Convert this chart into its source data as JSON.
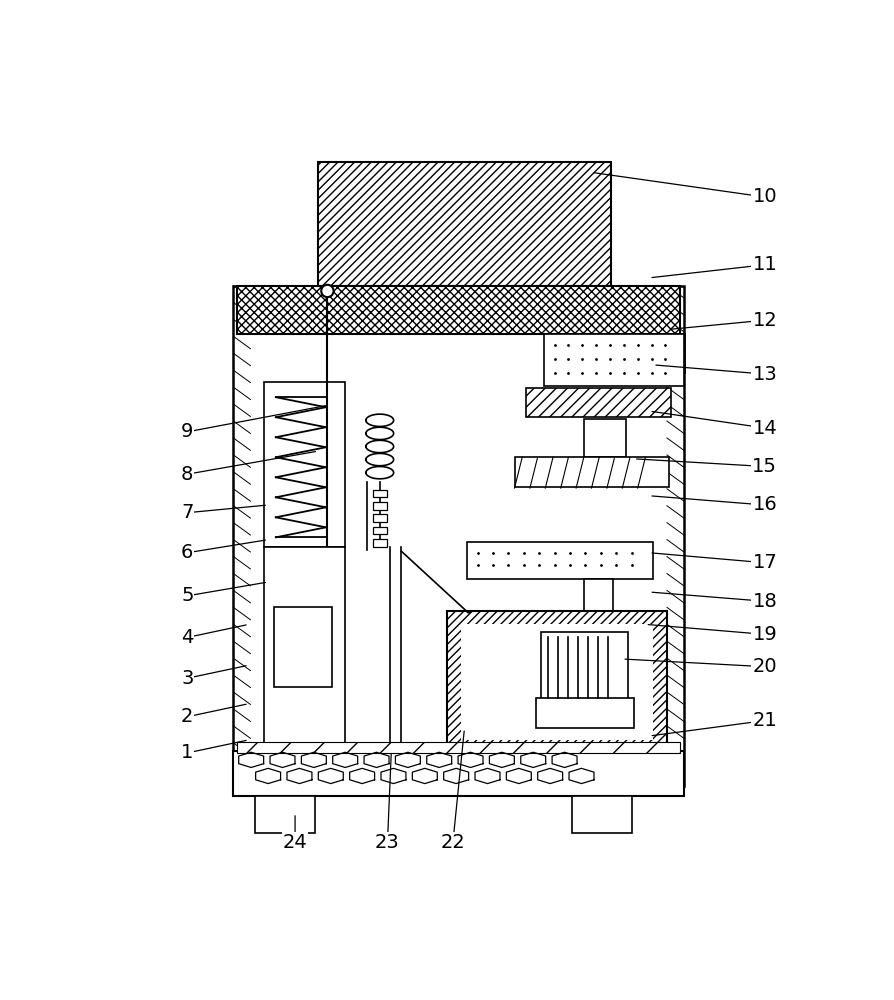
{
  "bg_color": "#ffffff",
  "line_color": "#000000",
  "figsize": [
    8.95,
    10.0
  ],
  "dpi": 100,
  "labels": [
    [
      "1",
      95,
      822,
      175,
      805
    ],
    [
      "2",
      95,
      775,
      175,
      758
    ],
    [
      "3",
      95,
      725,
      175,
      708
    ],
    [
      "4",
      95,
      672,
      175,
      655
    ],
    [
      "5",
      95,
      618,
      200,
      600
    ],
    [
      "6",
      95,
      562,
      200,
      545
    ],
    [
      "7",
      95,
      510,
      200,
      500
    ],
    [
      "8",
      95,
      460,
      265,
      430
    ],
    [
      "9",
      95,
      405,
      280,
      370
    ],
    [
      "10",
      845,
      100,
      620,
      68
    ],
    [
      "11",
      845,
      188,
      695,
      205
    ],
    [
      "12",
      845,
      260,
      720,
      272
    ],
    [
      "13",
      845,
      330,
      700,
      318
    ],
    [
      "14",
      845,
      400,
      695,
      378
    ],
    [
      "15",
      845,
      450,
      675,
      440
    ],
    [
      "16",
      845,
      500,
      695,
      488
    ],
    [
      "17",
      845,
      575,
      695,
      562
    ],
    [
      "18",
      845,
      625,
      695,
      613
    ],
    [
      "19",
      845,
      668,
      690,
      655
    ],
    [
      "20",
      845,
      710,
      660,
      700
    ],
    [
      "21",
      845,
      780,
      695,
      800
    ],
    [
      "22",
      440,
      938,
      455,
      790
    ],
    [
      "23",
      355,
      938,
      360,
      820
    ],
    [
      "24",
      235,
      938,
      235,
      900
    ]
  ]
}
